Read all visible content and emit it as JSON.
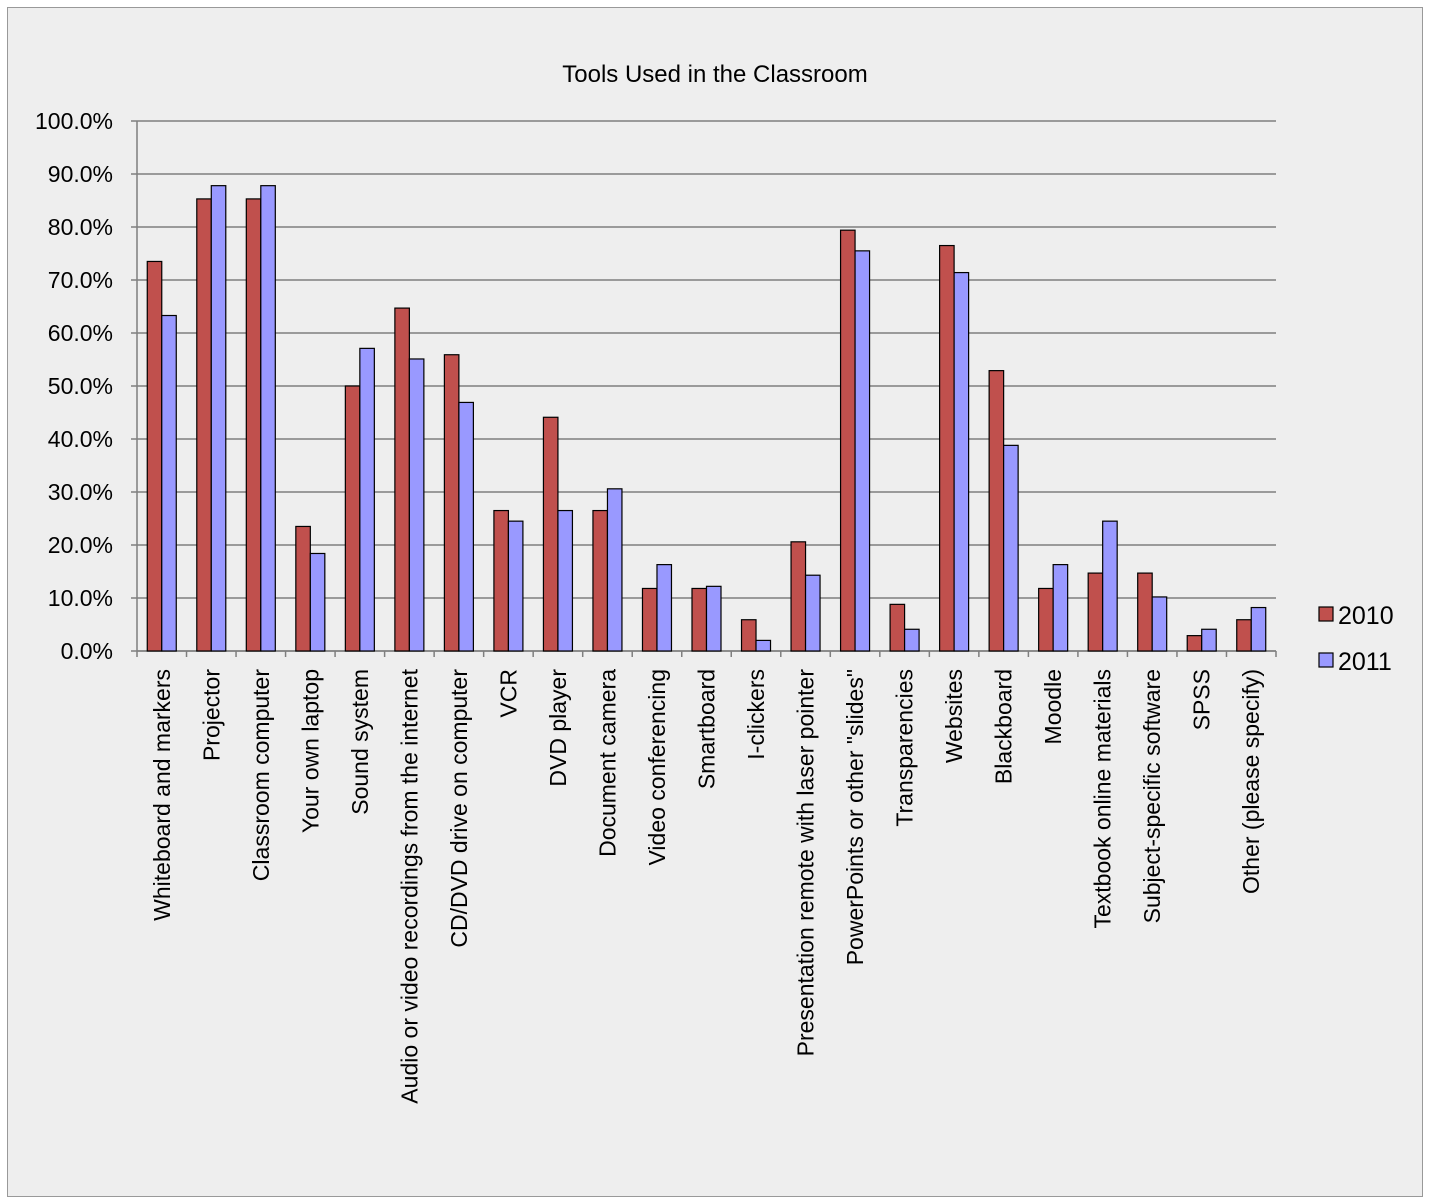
{
  "chart_data": {
    "type": "bar",
    "title": "Tools Used in the Classroom",
    "xlabel": "",
    "ylabel": "",
    "ylim": [
      0,
      100
    ],
    "yticks": [
      "0.0%",
      "10.0%",
      "20.0%",
      "30.0%",
      "40.0%",
      "50.0%",
      "60.0%",
      "70.0%",
      "80.0%",
      "90.0%",
      "100.0%"
    ],
    "grid": true,
    "legend_position": "right",
    "categories": [
      "Whiteboard and markers",
      "Projector",
      "Classroom computer",
      "Your own laptop",
      "Sound system",
      "Audio or video recordings from the internet",
      "CD/DVD drive on computer",
      "VCR",
      "DVD player",
      "Document camera",
      "Video conferencing",
      "Smartboard",
      "I-clickers",
      "Presentation remote with laser pointer",
      "PowerPoints or other \"slides\"",
      "Transparencies",
      "Websites",
      "Blackboard",
      "Moodle",
      "Textbook online materials",
      "Subject-specific software",
      "SPSS",
      "Other (please specify)"
    ],
    "series": [
      {
        "name": "2010",
        "color": "#c0504d",
        "values": [
          73.5,
          85.3,
          85.3,
          23.5,
          50.0,
          64.7,
          55.9,
          26.5,
          44.1,
          26.5,
          11.8,
          11.8,
          5.9,
          20.6,
          79.4,
          8.8,
          76.5,
          52.9,
          11.8,
          14.7,
          14.7,
          2.9,
          5.9
        ]
      },
      {
        "name": "2011",
        "color": "#9999ff",
        "values": [
          63.3,
          87.8,
          87.8,
          18.4,
          57.1,
          55.1,
          46.9,
          24.5,
          26.5,
          30.6,
          16.3,
          12.2,
          2.0,
          14.3,
          75.5,
          4.1,
          71.4,
          38.8,
          16.3,
          24.5,
          10.2,
          4.1,
          8.2
        ]
      }
    ]
  }
}
